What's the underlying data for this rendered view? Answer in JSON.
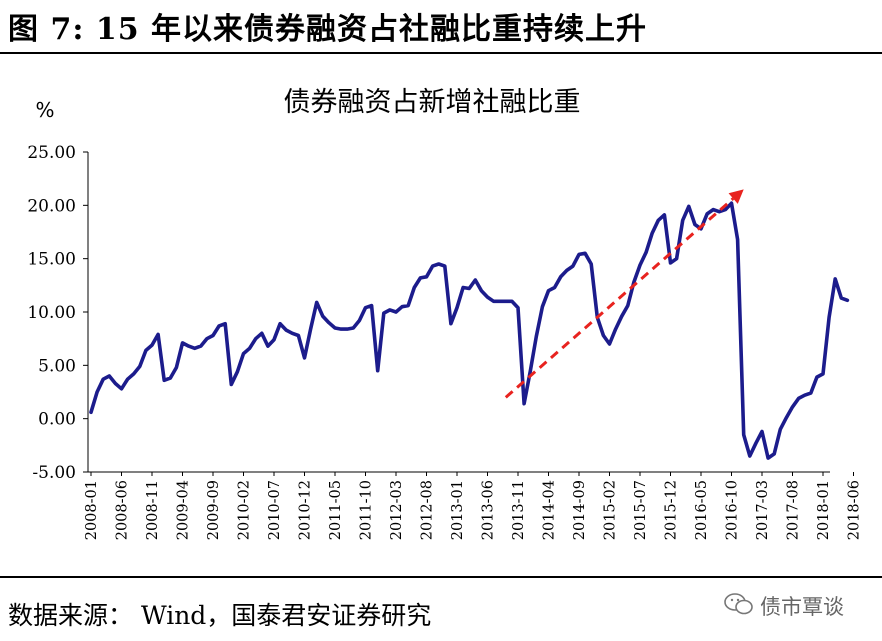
{
  "figure": {
    "title": "图 7:  15 年以来债券融资占社融比重持续上升",
    "source": "数据来源： Wind，国泰君安证券研究",
    "watermark": "债市覃谈"
  },
  "colors": {
    "line": "#1c1c8c",
    "trend_arrow": "#e8231f",
    "axis": "#000000"
  },
  "chart_data": {
    "type": "line",
    "title": "债券融资占新增社融比重",
    "ylabel": "%",
    "xlabel": "",
    "ylim": [
      -5,
      25
    ],
    "yticks": [
      "25.00",
      "20.00",
      "15.00",
      "10.00",
      "5.00",
      "0.00",
      "-5.00"
    ],
    "xtick_labels": [
      "2008-01",
      "2008-06",
      "2008-11",
      "2009-04",
      "2009-09",
      "2010-02",
      "2010-07",
      "2010-12",
      "2011-05",
      "2011-10",
      "2012-03",
      "2012-08",
      "2013-01",
      "2013-06",
      "2013-11",
      "2014-04",
      "2014-09",
      "2015-02",
      "2015-07",
      "2015-12",
      "2016-05",
      "2016-10",
      "2017-03",
      "2017-08",
      "2018-01",
      "2018-06"
    ],
    "grid": false,
    "series": [
      {
        "start": "2008-01",
        "frequency": "monthly",
        "values": [
          0.6,
          2.5,
          3.7,
          4.0,
          3.3,
          2.8,
          3.7,
          4.2,
          4.9,
          6.4,
          6.9,
          7.9,
          3.6,
          3.8,
          4.8,
          7.1,
          6.8,
          6.6,
          6.8,
          7.5,
          7.8,
          8.7,
          8.9,
          3.2,
          4.4,
          6.1,
          6.6,
          7.5,
          8.0,
          6.8,
          7.4,
          8.9,
          8.3,
          8.0,
          7.8,
          5.7,
          8.4,
          10.9,
          9.6,
          9.0,
          8.5,
          8.4,
          8.4,
          8.5,
          9.2,
          10.4,
          10.6,
          4.5,
          9.9,
          10.2,
          10.0,
          10.5,
          10.6,
          12.3,
          13.2,
          13.3,
          14.3,
          14.5,
          14.3,
          8.9,
          10.4,
          12.3,
          12.2,
          13.0,
          12.0,
          11.4,
          11.0,
          11.0,
          11.0,
          11.0,
          10.4,
          1.4,
          4.4,
          7.7,
          10.5,
          12.0,
          12.3,
          13.3,
          13.9,
          14.3,
          15.4,
          15.5,
          14.5,
          9.5,
          7.8,
          7.0,
          8.4,
          9.6,
          10.6,
          12.8,
          14.4,
          15.6,
          17.4,
          18.6,
          19.1,
          14.6,
          15.0,
          18.6,
          19.9,
          18.2,
          17.8,
          19.2,
          19.6,
          19.4,
          19.6,
          20.2,
          16.8,
          -1.5,
          -3.5,
          -2.3,
          -1.2,
          -3.7,
          -3.3,
          -1.0,
          0.1,
          1.1,
          1.9,
          2.2,
          2.4,
          3.9,
          4.2,
          9.5,
          13.1,
          11.3,
          11.1
        ]
      }
    ],
    "annotation": {
      "type": "trend-arrow",
      "from": [
        "2013-09",
        2.0
      ],
      "to": [
        "2016-12",
        21.5
      ]
    }
  }
}
